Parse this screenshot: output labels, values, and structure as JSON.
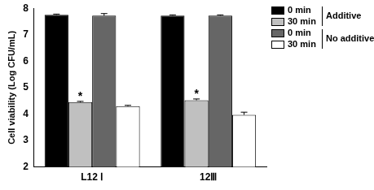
{
  "chart_data": {
    "type": "bar",
    "y_label": "Cell viability (Log CFU/mL)",
    "categories": [
      "L12 Ⅰ",
      "12Ⅲ"
    ],
    "series": [
      {
        "name": "0 min",
        "group": "Additive",
        "color": "#000000",
        "values": [
          7.75,
          7.72
        ],
        "errors": [
          0.03,
          0.03
        ]
      },
      {
        "name": "30 min",
        "group": "Additive",
        "color": "#c0c0c0",
        "values": [
          4.45,
          4.52
        ],
        "errors": [
          0.03,
          0.05
        ]
      },
      {
        "name": "0 min",
        "group": "No additive",
        "color": "#666666",
        "values": [
          7.72,
          7.72
        ],
        "errors": [
          0.08,
          0.03
        ]
      },
      {
        "name": "30 min",
        "group": "No additive",
        "color": "#ffffff",
        "values": [
          4.3,
          3.97
        ],
        "errors": [
          0.03,
          0.1
        ]
      }
    ],
    "annotations": [
      {
        "text": "*",
        "category": "L12 Ⅰ",
        "series": 1
      },
      {
        "text": "*",
        "category": "12Ⅲ",
        "series": 1
      }
    ],
    "ylim": [
      2,
      8
    ],
    "yticks": [
      2,
      3,
      4,
      5,
      6,
      7,
      8
    ],
    "grid": false
  }
}
